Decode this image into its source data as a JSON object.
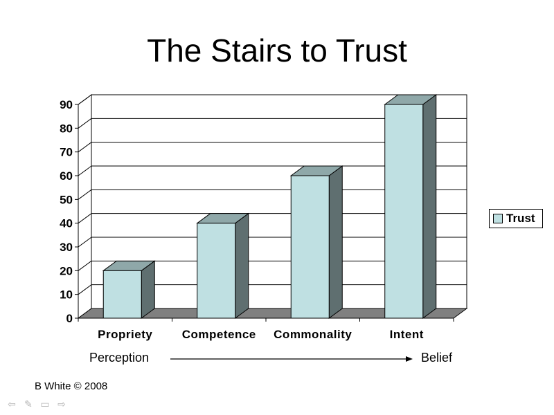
{
  "slide": {
    "title": "The Stairs to Trust",
    "credit": "B White © 2008"
  },
  "annotation": {
    "left": "Perception",
    "right": "Belief"
  },
  "colors": {
    "bar_front": "#bfe0e2",
    "bar_top": "#8fa8a9",
    "bar_side": "#5f6f70",
    "floor": "#808080"
  },
  "nav_icons": [
    "arrow-left-icon",
    "pen-icon",
    "menu-icon",
    "arrow-right-icon"
  ],
  "chart_data": {
    "type": "bar",
    "title": "",
    "categories": [
      "Propriety",
      "Competence",
      "Commonality",
      "Intent"
    ],
    "series": [
      {
        "name": "Trust",
        "values": [
          20,
          40,
          60,
          90
        ]
      }
    ],
    "ylim": [
      0,
      90
    ],
    "yticks": [
      0,
      10,
      20,
      30,
      40,
      50,
      60,
      70,
      80,
      90
    ],
    "grid": true,
    "legend": "right",
    "three_d": true
  }
}
